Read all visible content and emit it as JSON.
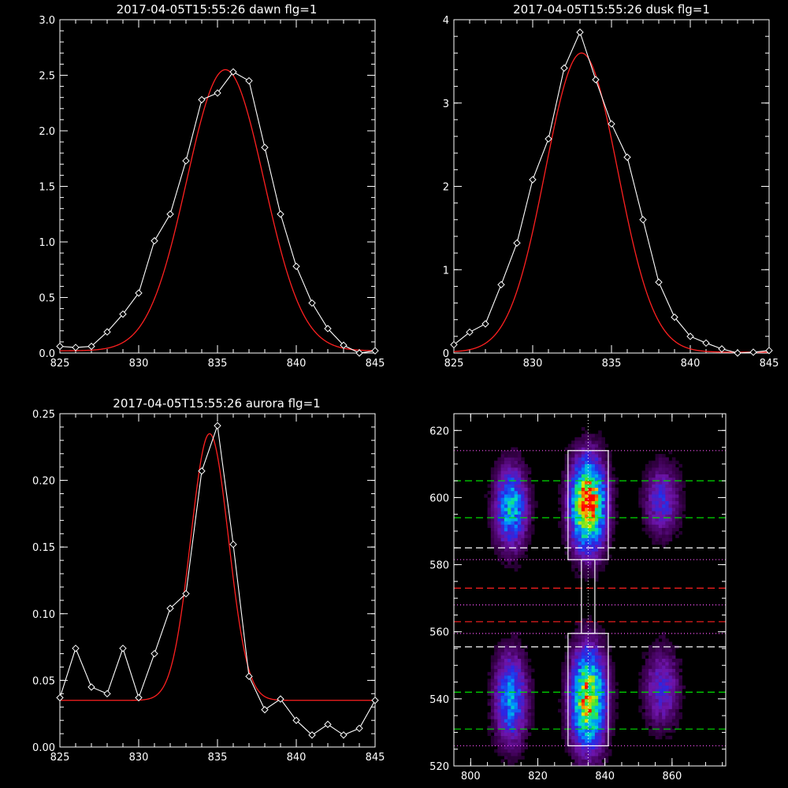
{
  "colors": {
    "background": "#000000",
    "axes": "#ffffff",
    "data": "#ffffff",
    "fit": "#ff2020",
    "green_lines": "#00dd00",
    "red_lines": "#ff2020",
    "white_dashed": "#ffffff",
    "magenta_dotted": "#ff55ff"
  },
  "chart_data": [
    {
      "type": "line",
      "title": "2017-04-05T15:55:26 dawn flg=1",
      "xlim": [
        825,
        845
      ],
      "ylim": [
        0,
        3.0
      ],
      "xticks": [
        "825",
        "830",
        "835",
        "840",
        "845"
      ],
      "yticks": [
        "0.0",
        "0.5",
        "1.0",
        "1.5",
        "2.0",
        "2.5",
        "3.0"
      ],
      "series": [
        {
          "x": [
            825,
            826,
            827,
            828,
            829,
            830,
            831,
            832,
            833,
            834,
            835,
            836,
            837,
            838,
            839,
            840,
            841,
            842,
            843,
            844,
            845
          ],
          "values": [
            0.06,
            0.05,
            0.06,
            0.19,
            0.35,
            0.54,
            1.01,
            1.25,
            1.73,
            2.28,
            2.34,
            2.53,
            2.45,
            1.85,
            1.25,
            0.78,
            0.45,
            0.22,
            0.07,
            0.0,
            0.02
          ]
        }
      ],
      "fit": {
        "kind": "gaussian",
        "amplitude": 2.53,
        "center": 835.5,
        "sigma": 2.45,
        "offset": 0.02
      }
    },
    {
      "type": "line",
      "title": "2017-04-05T15:55:26 dusk flg=1",
      "xlim": [
        825,
        845
      ],
      "ylim": [
        0,
        4
      ],
      "xticks": [
        "825",
        "830",
        "835",
        "840",
        "845"
      ],
      "yticks": [
        "0",
        "1",
        "2",
        "3",
        "4"
      ],
      "series": [
        {
          "x": [
            825,
            826,
            827,
            828,
            829,
            830,
            831,
            832,
            833,
            834,
            835,
            836,
            837,
            838,
            839,
            840,
            841,
            842,
            843,
            844,
            845
          ],
          "values": [
            0.1,
            0.25,
            0.35,
            0.82,
            1.32,
            2.08,
            2.57,
            3.42,
            3.85,
            3.28,
            2.75,
            2.35,
            1.6,
            0.85,
            0.43,
            0.2,
            0.12,
            0.05,
            0.0,
            0.01,
            0.03
          ]
        }
      ],
      "fit": {
        "kind": "gaussian",
        "amplitude": 3.59,
        "center": 833.1,
        "sigma": 2.3,
        "offset": 0.01
      }
    },
    {
      "type": "line",
      "title": "2017-04-05T15:55:26 aurora flg=1",
      "xlim": [
        825,
        845
      ],
      "ylim": [
        0,
        0.25
      ],
      "xticks": [
        "825",
        "830",
        "835",
        "840",
        "845"
      ],
      "yticks": [
        "0.00",
        "0.05",
        "0.10",
        "0.15",
        "0.20",
        "0.25"
      ],
      "series": [
        {
          "x": [
            825,
            826,
            827,
            828,
            829,
            830,
            831,
            832,
            833,
            834,
            835,
            836,
            837,
            838,
            839,
            840,
            841,
            842,
            843,
            844,
            845
          ],
          "values": [
            0.037,
            0.074,
            0.045,
            0.04,
            0.074,
            0.037,
            0.07,
            0.104,
            0.115,
            0.207,
            0.241,
            0.152,
            0.053,
            0.028,
            0.036,
            0.02,
            0.009,
            0.017,
            0.009,
            0.014,
            0.035
          ]
        }
      ],
      "fit": {
        "kind": "gaussian",
        "amplitude": 0.2,
        "center": 834.5,
        "sigma": 1.2,
        "offset": 0.035
      }
    },
    {
      "type": "heatmap",
      "xlim": [
        795,
        876
      ],
      "ylim": [
        520,
        625
      ],
      "xticks": [
        "800",
        "820",
        "840",
        "860"
      ],
      "yticks": [
        "520",
        "540",
        "560",
        "580",
        "600",
        "620"
      ],
      "blobs": [
        {
          "x": 812,
          "y": 597,
          "sx": 3.2,
          "sy": 8,
          "peak": 0.55
        },
        {
          "x": 835,
          "y": 598,
          "sx": 3.5,
          "sy": 9,
          "peak": 1.0
        },
        {
          "x": 857,
          "y": 599,
          "sx": 3.5,
          "sy": 7,
          "peak": 0.3
        },
        {
          "x": 812,
          "y": 540,
          "sx": 3.2,
          "sy": 9,
          "peak": 0.48
        },
        {
          "x": 835,
          "y": 540,
          "sx": 3.5,
          "sy": 10,
          "peak": 0.85
        },
        {
          "x": 857,
          "y": 543,
          "sx": 3.5,
          "sy": 8,
          "peak": 0.28
        }
      ],
      "boxes": [
        {
          "x0": 829,
          "x1": 841,
          "y0": 581.5,
          "y1": 614
        },
        {
          "x0": 829,
          "x1": 841,
          "y0": 526,
          "y1": 559.5
        },
        {
          "x0": 833,
          "x1": 837,
          "y0": 559.5,
          "y1": 581.5
        }
      ],
      "dotted_vline": 835,
      "hlines": [
        {
          "y": 614,
          "style": "dotted-magenta"
        },
        {
          "y": 605,
          "style": "dashed-green"
        },
        {
          "y": 594,
          "style": "dashed-green"
        },
        {
          "y": 585,
          "style": "dashed-white"
        },
        {
          "y": 581.5,
          "style": "dotted-magenta"
        },
        {
          "y": 573,
          "style": "dashed-red"
        },
        {
          "y": 568,
          "style": "dotted-magenta"
        },
        {
          "y": 563,
          "style": "dashed-red"
        },
        {
          "y": 559.5,
          "style": "dotted-magenta"
        },
        {
          "y": 555.5,
          "style": "dashed-white"
        },
        {
          "y": 542,
          "style": "dashed-green"
        },
        {
          "y": 531,
          "style": "dashed-green"
        },
        {
          "y": 526,
          "style": "dotted-magenta"
        }
      ]
    }
  ]
}
